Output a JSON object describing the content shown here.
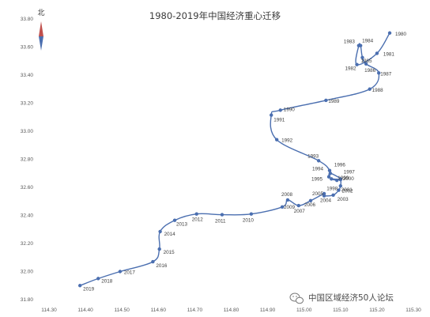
{
  "chart_data": {
    "type": "scatter",
    "title": "1980-2019年中国经济重心迁移",
    "xlabel": "",
    "ylabel": "",
    "xlim": [
      114.3,
      115.3
    ],
    "ylim": [
      31.8,
      33.8
    ],
    "x_ticks": [
      "114.30",
      "114.40",
      "114.50",
      "114.60",
      "114.70",
      "114.80",
      "114.90",
      "115.00",
      "115.10",
      "115.20",
      "115.30"
    ],
    "y_ticks": [
      "33.80",
      "33.60",
      "33.40",
      "33.20",
      "33.00",
      "32.80",
      "32.60",
      "32.40",
      "32.20",
      "32.00",
      "31.80"
    ],
    "grid": false,
    "line_color": "#4b6fb0",
    "series": [
      {
        "points": [
          {
            "label": "1980",
            "x": 115.235,
            "y": 33.7
          },
          {
            "label": "1981",
            "x": 115.2,
            "y": 33.555
          },
          {
            "label": "1982",
            "x": 115.145,
            "y": 33.475
          },
          {
            "label": "1983",
            "x": 115.15,
            "y": 33.61
          },
          {
            "label": "1984",
            "x": 115.155,
            "y": 33.61
          },
          {
            "label": "1985",
            "x": 115.16,
            "y": 33.525
          },
          {
            "label": "1986",
            "x": 115.17,
            "y": 33.48
          },
          {
            "label": "1987",
            "x": 115.205,
            "y": 33.415
          },
          {
            "label": "1988",
            "x": 115.18,
            "y": 33.3
          },
          {
            "label": "1989",
            "x": 115.06,
            "y": 33.22
          },
          {
            "label": "1990",
            "x": 114.935,
            "y": 33.15
          },
          {
            "label": "1991",
            "x": 114.91,
            "y": 33.115
          },
          {
            "label": "1992",
            "x": 114.925,
            "y": 32.94
          },
          {
            "label": "1993",
            "x": 115.04,
            "y": 32.79
          },
          {
            "label": "1994",
            "x": 115.07,
            "y": 32.72
          },
          {
            "label": "1995",
            "x": 115.068,
            "y": 32.675
          },
          {
            "label": "1996",
            "x": 115.072,
            "y": 32.7
          },
          {
            "label": "1997",
            "x": 115.1,
            "y": 32.66
          },
          {
            "label": "1998",
            "x": 115.075,
            "y": 32.66
          },
          {
            "label": "1999",
            "x": 115.09,
            "y": 32.65
          },
          {
            "label": "2000",
            "x": 115.1,
            "y": 32.655
          },
          {
            "label": "2001",
            "x": 115.1,
            "y": 32.61
          },
          {
            "label": "2002",
            "x": 115.095,
            "y": 32.58
          },
          {
            "label": "2003",
            "x": 115.08,
            "y": 32.545
          },
          {
            "label": "2004",
            "x": 115.055,
            "y": 32.54
          },
          {
            "label": "2005",
            "x": 115.055,
            "y": 32.555
          },
          {
            "label": "2006",
            "x": 115.018,
            "y": 32.505
          },
          {
            "label": "2007",
            "x": 114.985,
            "y": 32.47
          },
          {
            "label": "2008",
            "x": 114.955,
            "y": 32.51
          },
          {
            "label": "2009",
            "x": 114.94,
            "y": 32.46
          },
          {
            "label": "2010",
            "x": 114.855,
            "y": 32.41
          },
          {
            "label": "2011",
            "x": 114.775,
            "y": 32.405
          },
          {
            "label": "2012",
            "x": 114.705,
            "y": 32.41
          },
          {
            "label": "2013",
            "x": 114.645,
            "y": 32.365
          },
          {
            "label": "2014",
            "x": 114.605,
            "y": 32.285
          },
          {
            "label": "2015",
            "x": 114.603,
            "y": 32.16
          },
          {
            "label": "2016",
            "x": 114.585,
            "y": 32.07
          },
          {
            "label": "2017",
            "x": 114.495,
            "y": 32.0
          },
          {
            "label": "2018",
            "x": 114.435,
            "y": 31.95
          },
          {
            "label": "2019",
            "x": 114.385,
            "y": 31.9
          }
        ]
      }
    ]
  },
  "north_arrow": {
    "label": "北",
    "colors": [
      "#c0504d",
      "#4b6fb0"
    ]
  },
  "watermark": {
    "text": "中国区域经济50人论坛",
    "icon": "wechat-icon"
  }
}
